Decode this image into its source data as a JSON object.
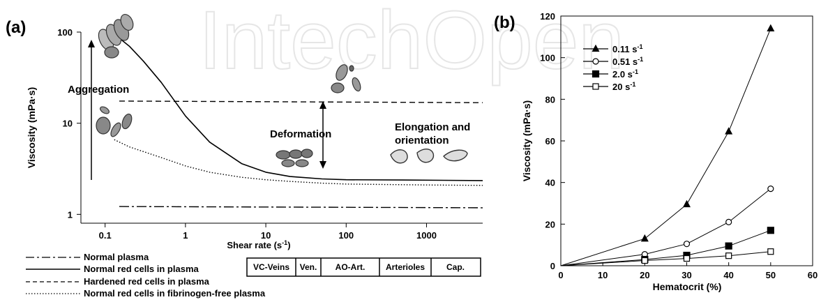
{
  "watermark": "IntechOpen",
  "chart_data": [
    {
      "panel_label": "(a)",
      "type": "line",
      "xscale": "log",
      "yscale": "log",
      "xlabel": "Shear rate (s-1)",
      "ylabel": "Viscosity (mPa·s)",
      "xlim": [
        0.05,
        5000
      ],
      "ylim": [
        0.8,
        100
      ],
      "x_ticks": [
        0.1,
        1,
        10,
        100,
        1000
      ],
      "x_tick_labels": [
        "0.1",
        "1",
        "10",
        "100",
        "1000"
      ],
      "y_ticks": [
        1,
        10,
        100
      ],
      "y_tick_labels": [
        "1",
        "10",
        "100"
      ],
      "grid": false,
      "legend_position": "bottom-left, below plot",
      "series": [
        {
          "name": "Normal plasma",
          "style": "dash-dot",
          "x": [
            0.15,
            5000
          ],
          "y": [
            1.22,
            1.18
          ]
        },
        {
          "name": "Normal red cells in plasma",
          "style": "solid",
          "x": [
            0.13,
            0.2,
            0.3,
            0.5,
            1,
            2,
            5,
            10,
            20,
            50,
            100,
            500,
            5000
          ],
          "y": [
            95,
            70,
            48,
            28,
            12,
            6.2,
            3.6,
            2.9,
            2.6,
            2.45,
            2.4,
            2.38,
            2.35
          ]
        },
        {
          "name": "Hardened red cells in plasma",
          "style": "dashed",
          "x": [
            0.15,
            5000
          ],
          "y": [
            17.5,
            16.8
          ]
        },
        {
          "name": "Normal red cells in fibrinogen-free plasma",
          "style": "dotted",
          "x": [
            0.13,
            0.2,
            0.5,
            1,
            2,
            5,
            10,
            20,
            50,
            100,
            1000,
            5000
          ],
          "y": [
            6.6,
            5.5,
            4.2,
            3.4,
            2.9,
            2.55,
            2.4,
            2.3,
            2.2,
            2.15,
            2.1,
            2.08
          ]
        }
      ],
      "annotations": [
        "Aggregation",
        "Deformation",
        "Elongation and",
        "orientation"
      ],
      "vessel_table": [
        "VC-Veins",
        "Ven.",
        "AO-Art.",
        "Arterioles",
        "Cap."
      ]
    },
    {
      "panel_label": "(b)",
      "type": "line",
      "xlabel": "Hematocrit (%)",
      "ylabel": "Viscosity (mPa·s)",
      "xlim": [
        0,
        60
      ],
      "ylim": [
        0,
        120
      ],
      "x_ticks": [
        0,
        10,
        20,
        30,
        40,
        50,
        60
      ],
      "y_ticks": [
        0,
        20,
        40,
        60,
        80,
        100,
        120
      ],
      "grid": false,
      "legend_position": "top-left",
      "categories": [
        0,
        20,
        30,
        40,
        50
      ],
      "series": [
        {
          "name": "0.11 s-1",
          "marker": "filled-triangle",
          "values": [
            0,
            13,
            29.5,
            64.5,
            114
          ]
        },
        {
          "name": "0.51 s-1",
          "marker": "open-circle",
          "values": [
            0,
            5.5,
            10.5,
            21,
            37
          ]
        },
        {
          "name": "2.0 s-1",
          "marker": "filled-square",
          "values": [
            0,
            3,
            5,
            9.5,
            17
          ]
        },
        {
          "name": "20 s-1",
          "marker": "open-square",
          "values": [
            0,
            2.5,
            3.5,
            4.8,
            6.8
          ]
        }
      ]
    }
  ]
}
